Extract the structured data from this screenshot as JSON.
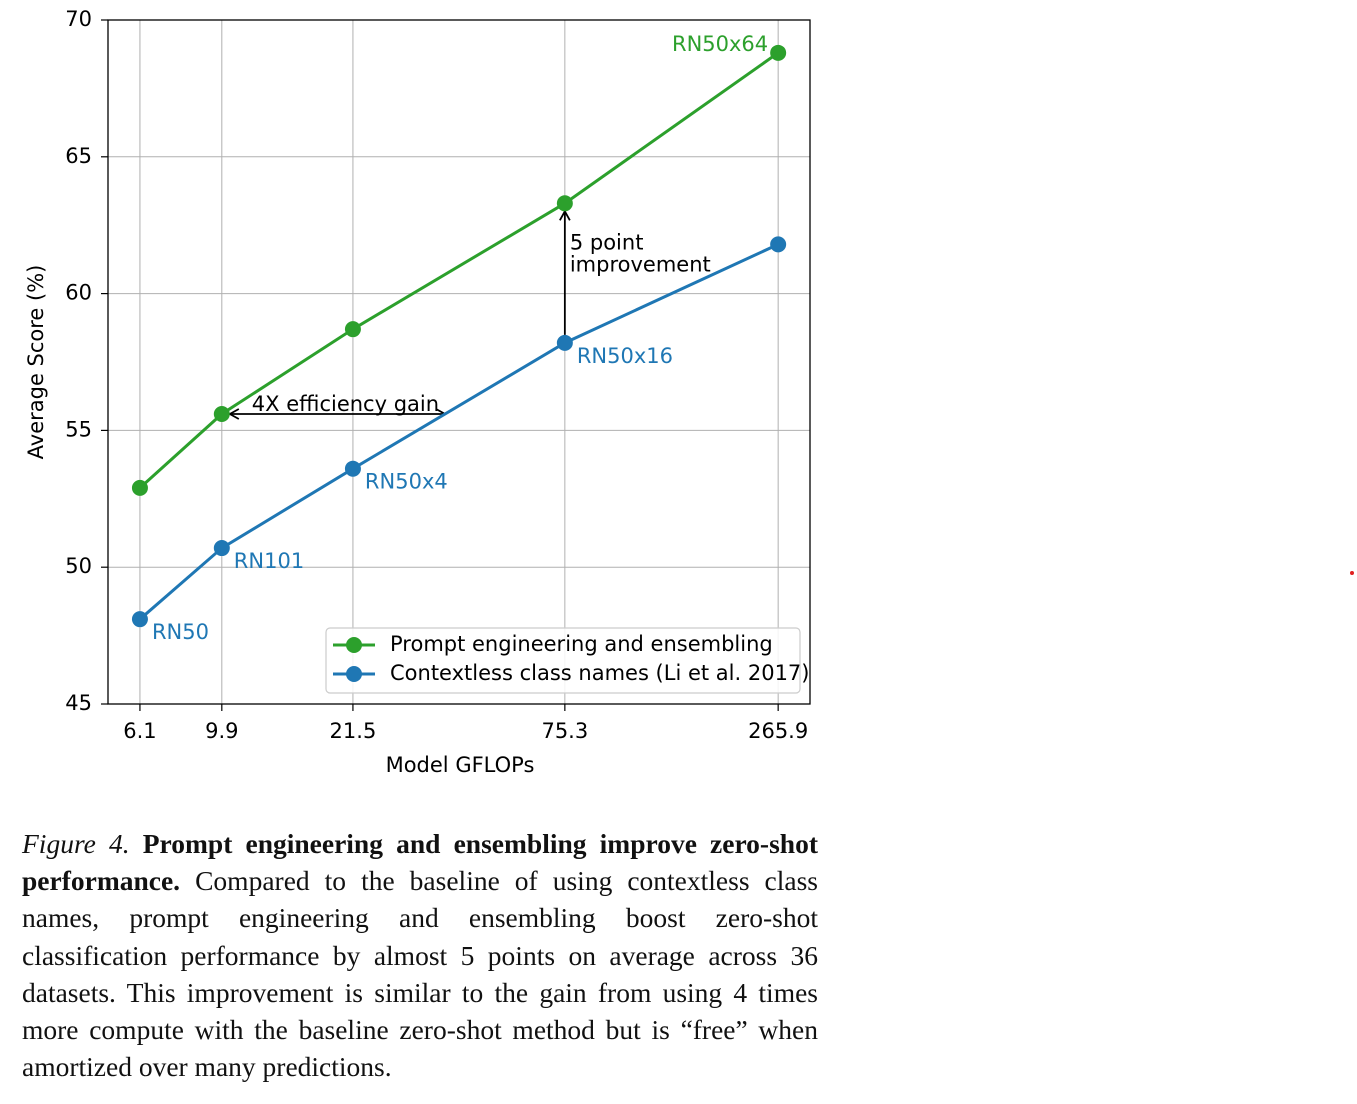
{
  "chart_data": {
    "type": "line",
    "xlabel": "Model GFLOPs",
    "ylabel": "Average Score (%)",
    "x": [
      6.1,
      9.9,
      21.5,
      75.3,
      265.9
    ],
    "xscale": "log",
    "xlim": [
      5.05,
      321
    ],
    "xticks": [
      6.1,
      9.9,
      21.5,
      75.3,
      265.9
    ],
    "ylim": [
      45,
      70
    ],
    "yticks": [
      45,
      50,
      55,
      60,
      65,
      70
    ],
    "grid": true,
    "legend": "lower right",
    "series": [
      {
        "name": "Prompt engineering and ensembling",
        "color": "#2ca02c",
        "values": [
          52.9,
          55.6,
          58.7,
          63.3,
          68.8
        ],
        "point_labels": [
          null,
          null,
          null,
          null,
          "RN50x64"
        ]
      },
      {
        "name": "Contextless class names (Li et al. 2017)",
        "color": "#1f77b4",
        "values": [
          48.1,
          50.7,
          53.6,
          58.2,
          61.8
        ],
        "point_labels": [
          "RN50",
          "RN101",
          "RN50x4",
          "RN50x16",
          null
        ]
      }
    ],
    "annotations": {
      "efficiency": "4X efficiency gain",
      "improvement": [
        "5 point",
        "improvement"
      ]
    }
  },
  "caption": {
    "label": "Figure 4.",
    "bold": "Prompt engineering and ensembling improve zero-shot performance.",
    "text": "Compared to the baseline of using contextless class names, prompt engineering and ensembling boost zero-shot classification performance by almost 5 points on average across 36 datasets. This improvement is similar to the gain from using 4 times more compute with the baseline zero-shot method but is “free” when amortized over many predictions."
  }
}
